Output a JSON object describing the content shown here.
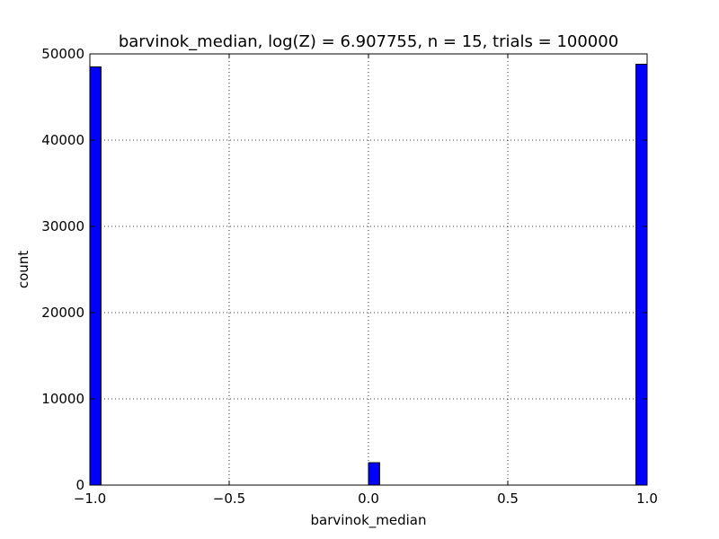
{
  "chart_data": {
    "type": "bar",
    "title": "barvinok_median, log(Z) = 6.907755, n = 15, trials = 100000",
    "xlabel": "barvinok_median",
    "ylabel": "count",
    "xlim": [
      -1.0,
      1.0
    ],
    "ylim": [
      0,
      50000
    ],
    "grid": true,
    "bar_color": "#0000ff",
    "bar_edge_color": "#000000",
    "x_ticks": [
      -1.0,
      -0.5,
      0.0,
      0.5,
      1.0
    ],
    "x_tick_labels": [
      "−1.0",
      "−0.5",
      "0.0",
      "0.5",
      "1.0"
    ],
    "y_ticks": [
      0,
      10000,
      20000,
      30000,
      40000,
      50000
    ],
    "y_tick_labels": [
      "0",
      "10000",
      "20000",
      "30000",
      "40000",
      "50000"
    ],
    "bins": [
      {
        "x0": -1.0,
        "x1": -0.96,
        "value": 48500
      },
      {
        "x0": 0.0,
        "x1": 0.04,
        "value": 2600
      },
      {
        "x0": 0.96,
        "x1": 1.0,
        "value": 48800
      }
    ]
  }
}
